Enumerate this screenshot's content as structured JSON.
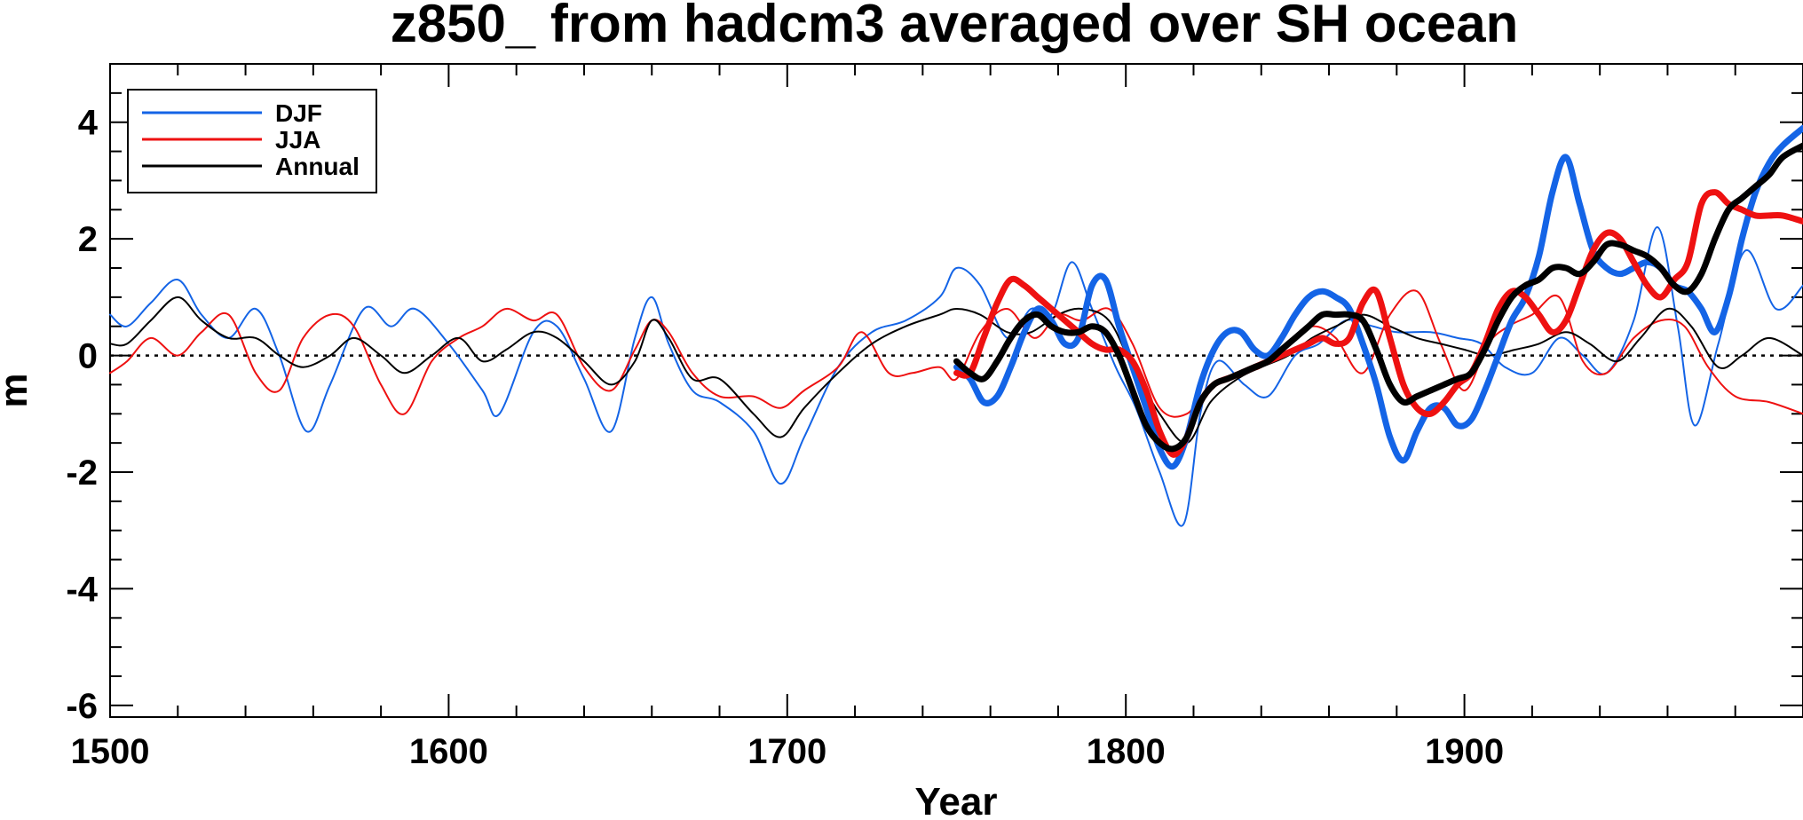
{
  "chart_data": {
    "type": "line",
    "title": "z850_ from hadcm3 averaged over SH ocean",
    "xlabel": "Year",
    "ylabel": "m",
    "xlim": [
      1500,
      2000
    ],
    "ylim": [
      -6.2,
      5.0
    ],
    "x_ticks": [
      1500,
      1600,
      1700,
      1800,
      1900
    ],
    "y_ticks": [
      -6,
      -4,
      -2,
      0,
      2,
      4
    ],
    "x_tick_labels": [
      "1500",
      "1600",
      "1700",
      "1800",
      "1900"
    ],
    "y_tick_labels": [
      "-6",
      "-4",
      "-2",
      "0",
      "2",
      "4"
    ],
    "zero_line": true,
    "legend_position": "top-left",
    "legend": [
      "DJF",
      "JJA",
      "Annual"
    ],
    "colors": {
      "DJF": "#1464e6",
      "JJA": "#ee1111",
      "Annual": "#000000"
    },
    "series": [
      {
        "name": "DJF",
        "style": "thin",
        "color": "#1464e6",
        "x": [
          1500,
          1505,
          1512,
          1520,
          1527,
          1535,
          1543,
          1550,
          1558,
          1565,
          1575,
          1583,
          1590,
          1600,
          1610,
          1615,
          1625,
          1632,
          1640,
          1648,
          1655,
          1660,
          1665,
          1672,
          1680,
          1690,
          1698,
          1705,
          1715,
          1725,
          1735,
          1745,
          1750,
          1757,
          1765,
          1772,
          1778,
          1784,
          1790,
          1797,
          1803,
          1810,
          1817,
          1822,
          1827,
          1835,
          1842,
          1850,
          1857,
          1865,
          1873,
          1880,
          1890,
          1898,
          1905,
          1912,
          1920,
          1928,
          1935,
          1942,
          1950,
          1957,
          1963,
          1968,
          1975,
          1983,
          1992,
          2000
        ],
        "values": [
          0.7,
          0.5,
          0.9,
          1.3,
          0.7,
          0.3,
          0.8,
          0.0,
          -1.3,
          -0.5,
          0.8,
          0.5,
          0.8,
          0.2,
          -0.6,
          -1.0,
          0.4,
          0.5,
          -0.4,
          -1.3,
          0.3,
          1.0,
          0.2,
          -0.6,
          -0.8,
          -1.3,
          -2.2,
          -1.4,
          -0.2,
          0.4,
          0.6,
          1.0,
          1.5,
          1.2,
          0.3,
          0.8,
          0.7,
          1.6,
          0.8,
          -0.2,
          -0.9,
          -2.0,
          -2.9,
          -1.0,
          -0.1,
          -0.5,
          -0.7,
          0.0,
          0.2,
          0.6,
          0.5,
          0.4,
          0.4,
          0.3,
          0.2,
          -0.2,
          -0.3,
          0.3,
          0.0,
          -0.3,
          0.6,
          2.2,
          0.5,
          -1.2,
          0.2,
          1.8,
          0.8,
          1.2
        ]
      },
      {
        "name": "JJA",
        "style": "thin",
        "color": "#ee1111",
        "x": [
          1500,
          1505,
          1512,
          1520,
          1527,
          1535,
          1543,
          1550,
          1557,
          1565,
          1572,
          1580,
          1587,
          1595,
          1603,
          1610,
          1617,
          1625,
          1632,
          1640,
          1648,
          1655,
          1660,
          1665,
          1672,
          1680,
          1690,
          1698,
          1705,
          1715,
          1722,
          1730,
          1737,
          1745,
          1750,
          1757,
          1765,
          1773,
          1780,
          1787,
          1795,
          1802,
          1810,
          1818,
          1825,
          1833,
          1840,
          1848,
          1855,
          1862,
          1870,
          1878,
          1886,
          1893,
          1900,
          1907,
          1913,
          1920,
          1928,
          1935,
          1942,
          1950,
          1958,
          1965,
          1972,
          1980,
          1990,
          2000
        ],
        "values": [
          -0.3,
          -0.1,
          0.3,
          0.0,
          0.4,
          0.7,
          -0.3,
          -0.6,
          0.3,
          0.7,
          0.5,
          -0.5,
          -1.0,
          -0.1,
          0.3,
          0.5,
          0.8,
          0.6,
          0.7,
          -0.2,
          -0.6,
          0.1,
          0.6,
          0.4,
          -0.3,
          -0.7,
          -0.7,
          -0.9,
          -0.6,
          -0.2,
          0.4,
          -0.3,
          -0.3,
          -0.2,
          -0.4,
          0.4,
          0.8,
          0.3,
          0.7,
          0.6,
          0.8,
          0.2,
          -0.9,
          -1.0,
          -0.5,
          -0.3,
          -0.2,
          0.2,
          0.5,
          0.3,
          -0.3,
          0.7,
          1.1,
          0.2,
          -0.6,
          0.2,
          0.5,
          0.7,
          1.0,
          -0.1,
          -0.3,
          0.3,
          0.6,
          0.5,
          -0.2,
          -0.7,
          -0.8,
          -1.0
        ]
      },
      {
        "name": "Annual",
        "style": "thin",
        "color": "#000000",
        "x": [
          1500,
          1505,
          1512,
          1520,
          1527,
          1535,
          1543,
          1550,
          1557,
          1565,
          1572,
          1580,
          1587,
          1595,
          1603,
          1610,
          1617,
          1625,
          1632,
          1640,
          1648,
          1655,
          1660,
          1665,
          1672,
          1680,
          1690,
          1698,
          1705,
          1715,
          1725,
          1735,
          1745,
          1750,
          1757,
          1765,
          1772,
          1780,
          1787,
          1795,
          1802,
          1810,
          1818,
          1825,
          1833,
          1840,
          1848,
          1855,
          1862,
          1870,
          1878,
          1886,
          1893,
          1900,
          1907,
          1915,
          1922,
          1930,
          1937,
          1945,
          1952,
          1960,
          1967,
          1975,
          1982,
          1990,
          2000
        ],
        "values": [
          0.2,
          0.2,
          0.6,
          1.0,
          0.6,
          0.3,
          0.3,
          0.0,
          -0.2,
          0.0,
          0.3,
          0.0,
          -0.3,
          0.0,
          0.3,
          -0.1,
          0.1,
          0.4,
          0.3,
          -0.1,
          -0.5,
          -0.1,
          0.6,
          0.3,
          -0.4,
          -0.4,
          -1.0,
          -1.4,
          -0.9,
          -0.3,
          0.2,
          0.5,
          0.7,
          0.8,
          0.7,
          0.4,
          0.4,
          0.7,
          0.8,
          0.6,
          -0.2,
          -1.0,
          -1.5,
          -0.8,
          -0.4,
          -0.2,
          0.0,
          0.3,
          0.5,
          0.7,
          0.5,
          0.3,
          0.2,
          0.1,
          0.0,
          0.1,
          0.2,
          0.4,
          0.2,
          -0.1,
          0.3,
          0.8,
          0.5,
          -0.2,
          0.0,
          0.3,
          0.0
        ]
      },
      {
        "name": "DJF smoothed",
        "style": "thick",
        "color": "#1464e6",
        "x": [
          1750,
          1754,
          1758,
          1762,
          1766,
          1770,
          1774,
          1778,
          1782,
          1786,
          1790,
          1794,
          1798,
          1802,
          1806,
          1810,
          1814,
          1818,
          1822,
          1826,
          1830,
          1834,
          1838,
          1842,
          1846,
          1850,
          1854,
          1858,
          1862,
          1866,
          1870,
          1874,
          1878,
          1882,
          1886,
          1890,
          1894,
          1898,
          1902,
          1906,
          1910,
          1914,
          1918,
          1922,
          1926,
          1930,
          1934,
          1938,
          1942,
          1946,
          1950,
          1954,
          1958,
          1962,
          1966,
          1970,
          1974,
          1978,
          1982,
          1986,
          1990,
          1994,
          2000
        ],
        "values": [
          -0.2,
          -0.4,
          -0.8,
          -0.7,
          -0.2,
          0.4,
          0.8,
          0.6,
          0.2,
          0.3,
          1.2,
          1.3,
          0.5,
          -0.2,
          -0.9,
          -1.6,
          -1.9,
          -1.4,
          -0.5,
          0.1,
          0.4,
          0.4,
          0.1,
          0.0,
          0.3,
          0.7,
          1.0,
          1.1,
          1.0,
          0.8,
          0.2,
          -0.5,
          -1.4,
          -1.8,
          -1.3,
          -0.9,
          -0.9,
          -1.2,
          -1.1,
          -0.6,
          0.0,
          0.6,
          1.0,
          1.7,
          2.8,
          3.4,
          2.6,
          1.8,
          1.5,
          1.4,
          1.5,
          1.6,
          1.5,
          1.2,
          1.1,
          0.8,
          0.4,
          1.0,
          2.0,
          2.8,
          3.3,
          3.6,
          3.9
        ]
      },
      {
        "name": "JJA smoothed",
        "style": "thick",
        "color": "#ee1111",
        "x": [
          1750,
          1754,
          1758,
          1762,
          1766,
          1770,
          1774,
          1778,
          1782,
          1786,
          1790,
          1794,
          1798,
          1802,
          1806,
          1810,
          1814,
          1818,
          1822,
          1826,
          1830,
          1834,
          1838,
          1842,
          1846,
          1850,
          1854,
          1858,
          1862,
          1866,
          1870,
          1874,
          1878,
          1882,
          1886,
          1890,
          1894,
          1898,
          1902,
          1906,
          1910,
          1914,
          1918,
          1922,
          1926,
          1930,
          1934,
          1938,
          1942,
          1946,
          1950,
          1954,
          1958,
          1962,
          1966,
          1970,
          1974,
          1978,
          1982,
          1986,
          1990,
          1994,
          2000
        ],
        "values": [
          -0.3,
          -0.3,
          0.3,
          0.9,
          1.3,
          1.2,
          1.0,
          0.8,
          0.6,
          0.4,
          0.2,
          0.1,
          0.1,
          -0.1,
          -0.6,
          -1.3,
          -1.7,
          -1.4,
          -0.8,
          -0.5,
          -0.4,
          -0.3,
          -0.2,
          -0.1,
          0.0,
          0.1,
          0.2,
          0.3,
          0.2,
          0.3,
          0.9,
          1.1,
          0.3,
          -0.5,
          -0.9,
          -1.0,
          -0.8,
          -0.5,
          -0.3,
          0.2,
          0.8,
          1.1,
          1.0,
          0.7,
          0.4,
          0.6,
          1.2,
          1.8,
          2.1,
          2.0,
          1.6,
          1.2,
          1.0,
          1.3,
          1.6,
          2.6,
          2.8,
          2.6,
          2.5,
          2.4,
          2.4,
          2.4,
          2.3
        ]
      },
      {
        "name": "Annual smoothed",
        "style": "thick",
        "color": "#000000",
        "x": [
          1750,
          1754,
          1758,
          1762,
          1766,
          1770,
          1774,
          1778,
          1782,
          1786,
          1790,
          1794,
          1798,
          1802,
          1806,
          1810,
          1814,
          1818,
          1822,
          1826,
          1830,
          1834,
          1838,
          1842,
          1846,
          1850,
          1854,
          1858,
          1862,
          1866,
          1870,
          1874,
          1878,
          1882,
          1886,
          1890,
          1894,
          1898,
          1902,
          1906,
          1910,
          1914,
          1918,
          1922,
          1926,
          1930,
          1934,
          1938,
          1942,
          1946,
          1950,
          1954,
          1958,
          1962,
          1966,
          1970,
          1974,
          1978,
          1982,
          1986,
          1990,
          1994,
          2000
        ],
        "values": [
          -0.1,
          -0.3,
          -0.4,
          -0.1,
          0.3,
          0.6,
          0.7,
          0.5,
          0.4,
          0.4,
          0.5,
          0.4,
          0.0,
          -0.6,
          -1.2,
          -1.5,
          -1.6,
          -1.4,
          -0.8,
          -0.5,
          -0.4,
          -0.3,
          -0.2,
          -0.1,
          0.1,
          0.3,
          0.5,
          0.7,
          0.7,
          0.7,
          0.6,
          0.1,
          -0.5,
          -0.8,
          -0.7,
          -0.6,
          -0.5,
          -0.4,
          -0.3,
          0.1,
          0.6,
          1.0,
          1.2,
          1.3,
          1.5,
          1.5,
          1.4,
          1.6,
          1.9,
          1.9,
          1.8,
          1.7,
          1.5,
          1.2,
          1.1,
          1.4,
          2.0,
          2.5,
          2.7,
          2.9,
          3.1,
          3.4,
          3.6
        ]
      }
    ]
  }
}
